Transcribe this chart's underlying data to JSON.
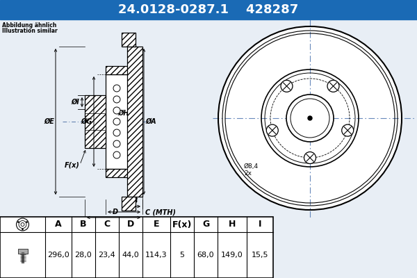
{
  "part_number": "24.0128-0287.1",
  "ref_number": "428287",
  "note_line1": "Abbildung ähnlich",
  "note_line2": "Illustration similar",
  "header_bg": "#1a6ab5",
  "header_text_color": "#ffffff",
  "bg_color": "#e8eef5",
  "table_bg": "#ffffff",
  "table_headers": [
    "A",
    "B",
    "C",
    "D",
    "E",
    "F(x)",
    "G",
    "H",
    "I"
  ],
  "table_values": [
    "296,0",
    "28,0",
    "23,4",
    "44,0",
    "114,3",
    "5",
    "68,0",
    "149,0",
    "15,5"
  ],
  "c_label": "C (MTH)",
  "hole_label": "Ø8,4\n2x"
}
